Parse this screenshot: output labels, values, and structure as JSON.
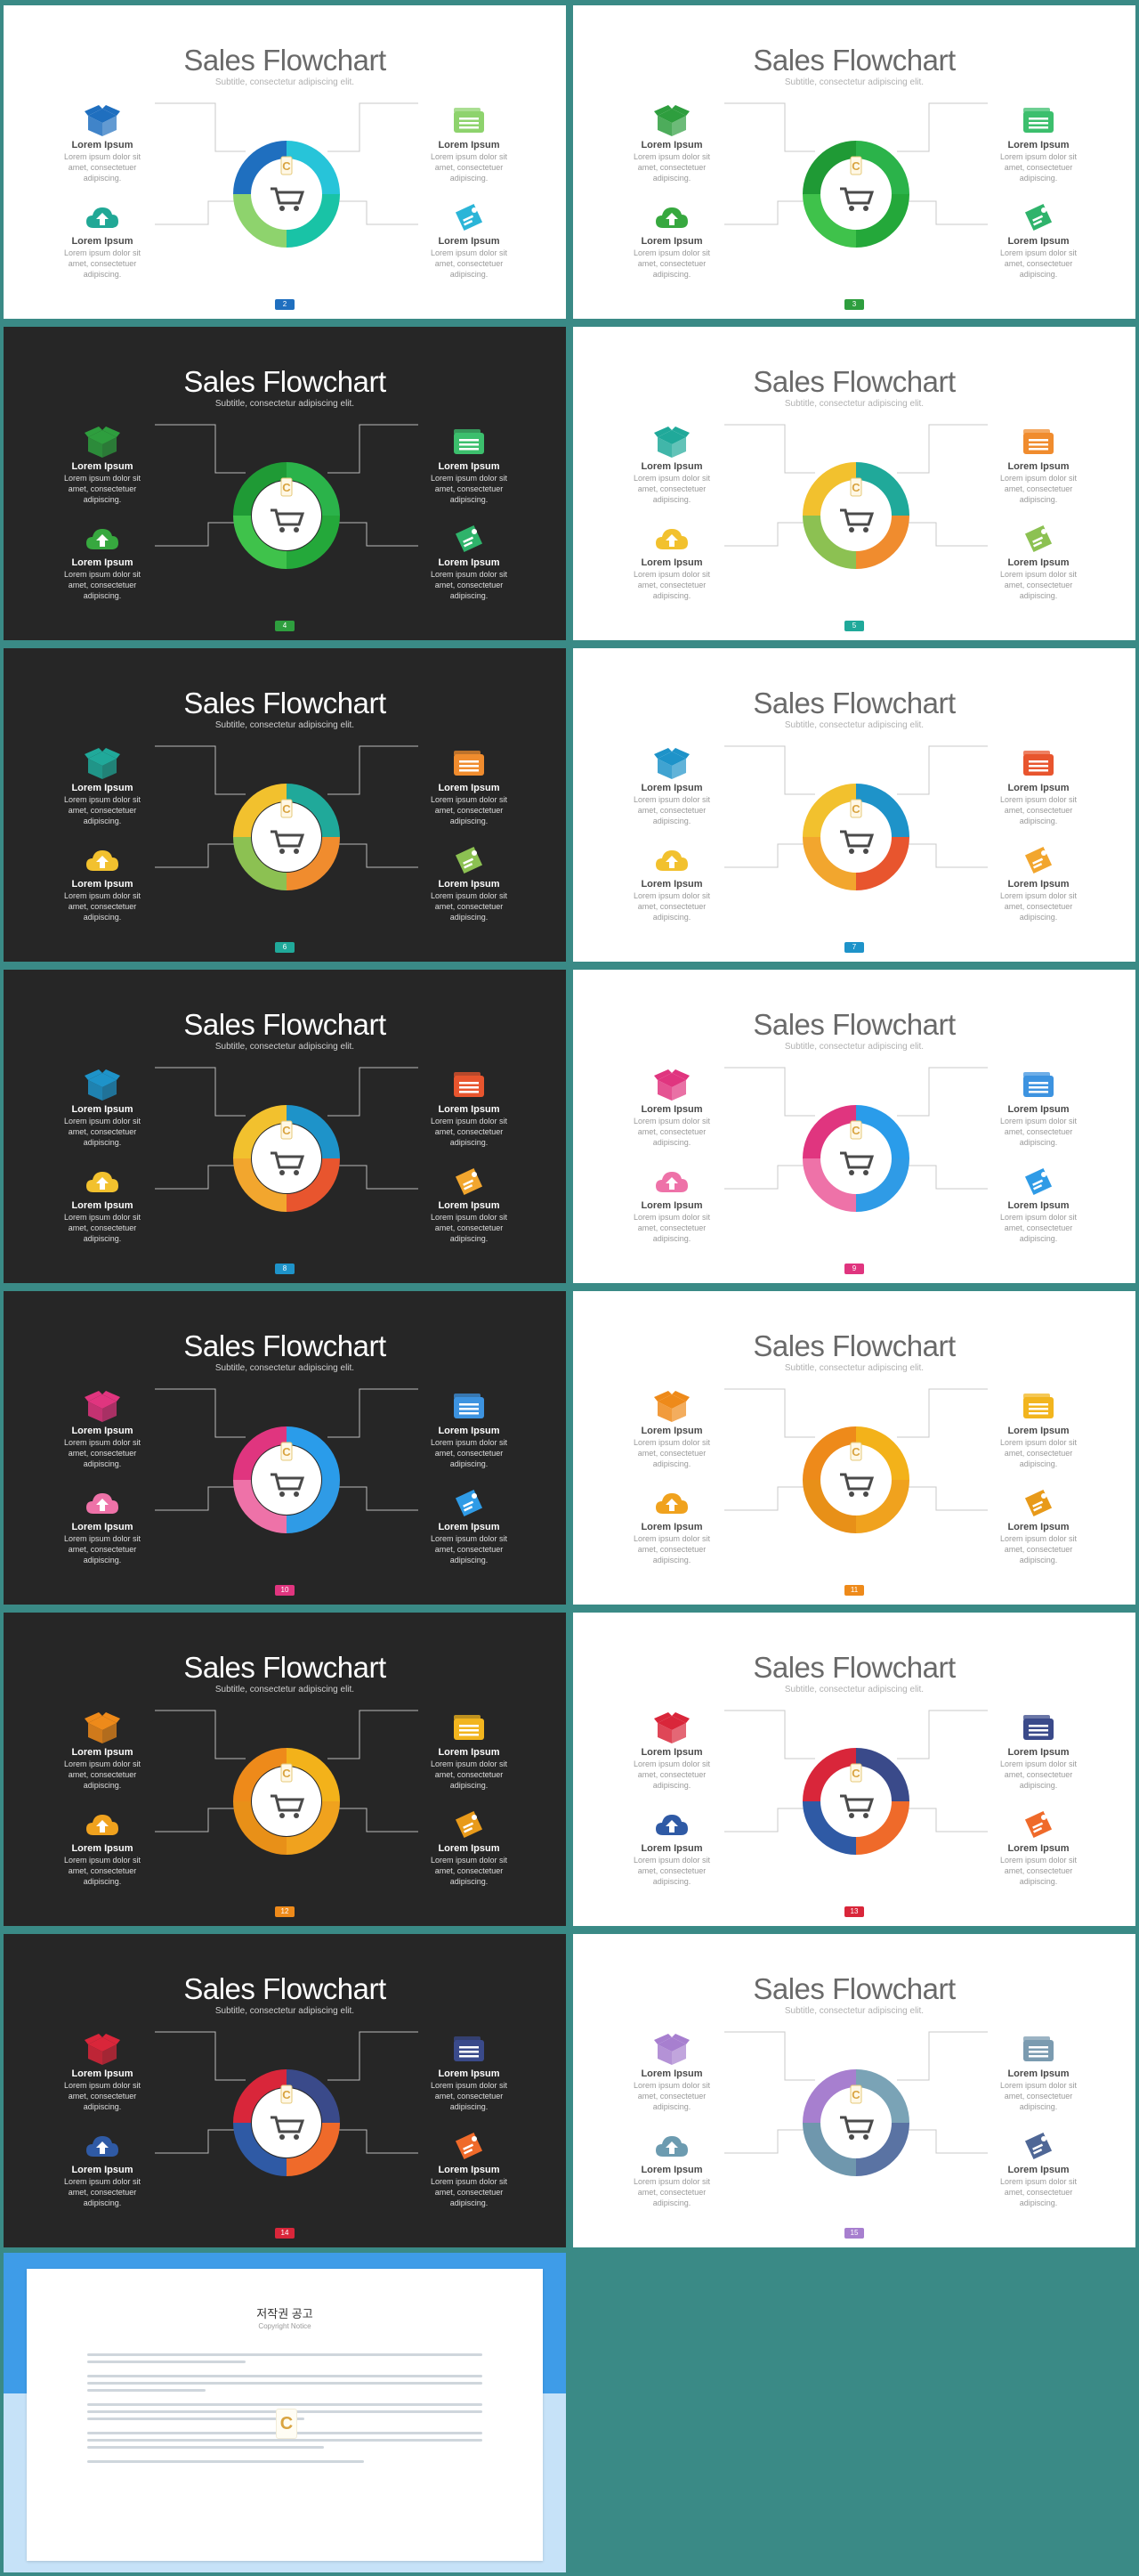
{
  "deck": {
    "title": "Sales Flowchart",
    "subtitle": "Subtitle, consectetur adipiscing elit.",
    "item_title": "Lorem Ipsum",
    "item_text": "Lorem ipsum dolor sit amet, consectetuer adipiscing."
  },
  "slides": [
    {
      "page": "2",
      "theme": "light",
      "colors": [
        "#1f6fbf",
        "#21a896",
        "#8ed36d",
        "#2bb5d8"
      ],
      "seg": [
        "#27c4d9",
        "#19c3a6",
        "#8ed36d",
        "#1f6fbf"
      ]
    },
    {
      "page": "3",
      "theme": "light",
      "colors": [
        "#2e9e3e",
        "#37a83f",
        "#3cbf6d",
        "#2fb36b"
      ],
      "seg": [
        "#2bb34a",
        "#24a83a",
        "#3fc24b",
        "#1f9a35"
      ]
    },
    {
      "page": "4",
      "theme": "dark",
      "colors": [
        "#2e9e3e",
        "#37a83f",
        "#3cbf6d",
        "#2fb36b"
      ],
      "seg": [
        "#2bb34a",
        "#24a83a",
        "#3fc24b",
        "#1f9a35"
      ]
    },
    {
      "page": "5",
      "theme": "light",
      "colors": [
        "#20a99a",
        "#f2c12e",
        "#f08c2e",
        "#8cc152"
      ],
      "seg": [
        "#20a99a",
        "#f08c2e",
        "#8cc152",
        "#f2c12e"
      ]
    },
    {
      "page": "6",
      "theme": "dark",
      "colors": [
        "#20a99a",
        "#f2c12e",
        "#f08c2e",
        "#8cc152"
      ],
      "seg": [
        "#20a99a",
        "#f08c2e",
        "#8cc152",
        "#f2c12e"
      ]
    },
    {
      "page": "7",
      "theme": "light",
      "colors": [
        "#1e93c9",
        "#f2c12e",
        "#e8552e",
        "#f2a62e"
      ],
      "seg": [
        "#1e93c9",
        "#e8552e",
        "#f2a62e",
        "#f2c12e"
      ]
    },
    {
      "page": "8",
      "theme": "dark",
      "colors": [
        "#1e93c9",
        "#f2c12e",
        "#e8552e",
        "#f2a62e"
      ],
      "seg": [
        "#1e93c9",
        "#e8552e",
        "#f2a62e",
        "#f2c12e"
      ]
    },
    {
      "page": "9",
      "theme": "light",
      "colors": [
        "#e0357f",
        "#ee72a8",
        "#3d93e0",
        "#2f9be6"
      ],
      "seg": [
        "#2a9cea",
        "#2f9be6",
        "#ee72a8",
        "#e0357f"
      ]
    },
    {
      "page": "10",
      "theme": "dark",
      "colors": [
        "#e0357f",
        "#ee72a8",
        "#3d93e0",
        "#2f9be6"
      ],
      "seg": [
        "#2a9cea",
        "#2f9be6",
        "#ee72a8",
        "#e0357f"
      ]
    },
    {
      "page": "11",
      "theme": "light",
      "colors": [
        "#ee8a1a",
        "#f0a21e",
        "#f2b51e",
        "#e89a1a"
      ],
      "seg": [
        "#f3b21a",
        "#f0a21e",
        "#e89018",
        "#ee8a1a"
      ]
    },
    {
      "page": "12",
      "theme": "dark",
      "colors": [
        "#ee8a1a",
        "#f0a21e",
        "#f2b51e",
        "#e89a1a"
      ],
      "seg": [
        "#f3b21a",
        "#f0a21e",
        "#e89018",
        "#ee8a1a"
      ]
    },
    {
      "page": "13",
      "theme": "light",
      "colors": [
        "#d9263a",
        "#2f5aa5",
        "#3a4a8a",
        "#ef6a2a"
      ],
      "seg": [
        "#3a4a8a",
        "#ef6a2a",
        "#2f5aa5",
        "#d9263a"
      ]
    },
    {
      "page": "14",
      "theme": "dark",
      "colors": [
        "#d9263a",
        "#2f5aa5",
        "#3a4a8a",
        "#ef6a2a"
      ],
      "seg": [
        "#3a4a8a",
        "#ef6a2a",
        "#2f5aa5",
        "#d9263a"
      ]
    },
    {
      "page": "15",
      "theme": "light",
      "colors": [
        "#a77fcf",
        "#6c9bb0",
        "#7b9bb0",
        "#4f6796"
      ],
      "seg": [
        "#7aa3b6",
        "#5a73a3",
        "#6f97ad",
        "#a77fcf"
      ]
    }
  ],
  "notice": {
    "title": "저작권 공고",
    "subtitle": "Copyright Notice"
  }
}
